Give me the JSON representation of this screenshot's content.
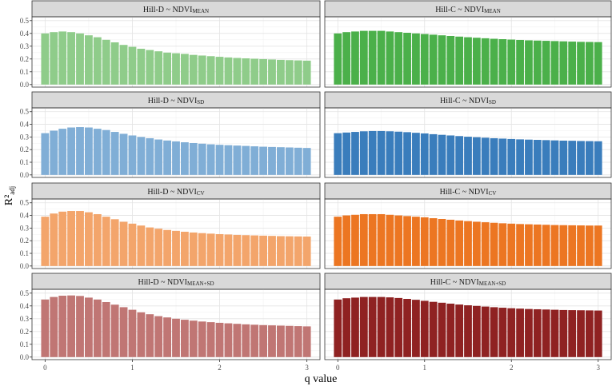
{
  "chart_data": {
    "type": "bar",
    "facet_layout": {
      "rows": 4,
      "cols": 2
    },
    "xlabel": "q value",
    "ylabel": {
      "main": "R²",
      "sub": "adj"
    },
    "x": [
      0.0,
      0.1,
      0.2,
      0.3,
      0.4,
      0.5,
      0.6,
      0.7,
      0.8,
      0.9,
      1.0,
      1.1,
      1.2,
      1.3,
      1.4,
      1.5,
      1.6,
      1.7,
      1.8,
      1.9,
      2.0,
      2.1,
      2.2,
      2.3,
      2.4,
      2.5,
      2.6,
      2.7,
      2.8,
      2.9,
      3.0
    ],
    "xlim": [
      -0.15,
      3.15
    ],
    "ylim": [
      -0.02,
      0.53
    ],
    "x_ticks": [
      0,
      1,
      2,
      3
    ],
    "x_tick_labels": [
      "0",
      "1",
      "2",
      "3"
    ],
    "y_ticks": [
      0.0,
      0.1,
      0.2,
      0.3,
      0.4,
      0.5
    ],
    "y_tick_labels": [
      "0.0",
      "0.1",
      "0.2",
      "0.3",
      "0.4",
      "0.5"
    ],
    "grid": true,
    "panels": [
      {
        "row": 0,
        "col": 0,
        "strip_prefix": "Hill-D ~ NDVI",
        "strip_sub": "MEAN",
        "color": "#8fcc8a",
        "values": [
          0.4,
          0.41,
          0.415,
          0.41,
          0.4,
          0.385,
          0.37,
          0.35,
          0.33,
          0.31,
          0.295,
          0.28,
          0.27,
          0.26,
          0.25,
          0.245,
          0.24,
          0.232,
          0.227,
          0.222,
          0.217,
          0.212,
          0.208,
          0.205,
          0.202,
          0.199,
          0.196,
          0.193,
          0.191,
          0.189,
          0.187
        ]
      },
      {
        "row": 0,
        "col": 1,
        "strip_prefix": "Hill-C ~ NDVI",
        "strip_sub": "MEAN",
        "color": "#4bb04a",
        "values": [
          0.4,
          0.41,
          0.415,
          0.42,
          0.42,
          0.42,
          0.415,
          0.41,
          0.405,
          0.4,
          0.395,
          0.39,
          0.385,
          0.38,
          0.375,
          0.37,
          0.366,
          0.362,
          0.358,
          0.355,
          0.352,
          0.349,
          0.346,
          0.344,
          0.342,
          0.34,
          0.338,
          0.336,
          0.334,
          0.333,
          0.332
        ]
      },
      {
        "row": 1,
        "col": 0,
        "strip_prefix": "Hill-D ~ NDVI",
        "strip_sub": "SD",
        "color": "#80aed6",
        "values": [
          0.33,
          0.35,
          0.365,
          0.375,
          0.378,
          0.375,
          0.365,
          0.355,
          0.34,
          0.325,
          0.312,
          0.3,
          0.29,
          0.28,
          0.272,
          0.265,
          0.258,
          0.252,
          0.247,
          0.242,
          0.238,
          0.235,
          0.232,
          0.229,
          0.226,
          0.223,
          0.221,
          0.219,
          0.217,
          0.215,
          0.213
        ]
      },
      {
        "row": 1,
        "col": 1,
        "strip_prefix": "Hill-C ~ NDVI",
        "strip_sub": "SD",
        "color": "#3a7dbc",
        "values": [
          0.33,
          0.335,
          0.34,
          0.345,
          0.347,
          0.347,
          0.345,
          0.342,
          0.338,
          0.333,
          0.328,
          0.322,
          0.317,
          0.312,
          0.307,
          0.302,
          0.298,
          0.294,
          0.29,
          0.287,
          0.284,
          0.281,
          0.279,
          0.277,
          0.275,
          0.273,
          0.271,
          0.27,
          0.268,
          0.267,
          0.266
        ]
      },
      {
        "row": 2,
        "col": 0,
        "strip_prefix": "Hill-D ~ NDVI",
        "strip_sub": "CV",
        "color": "#f3a56b",
        "values": [
          0.39,
          0.415,
          0.43,
          0.435,
          0.435,
          0.425,
          0.41,
          0.39,
          0.37,
          0.35,
          0.335,
          0.32,
          0.305,
          0.295,
          0.285,
          0.278,
          0.271,
          0.265,
          0.26,
          0.256,
          0.252,
          0.249,
          0.246,
          0.244,
          0.242,
          0.24,
          0.238,
          0.236,
          0.235,
          0.234,
          0.233
        ]
      },
      {
        "row": 2,
        "col": 1,
        "strip_prefix": "Hill-C ~ NDVI",
        "strip_sub": "CV",
        "color": "#ec7622",
        "values": [
          0.39,
          0.4,
          0.405,
          0.41,
          0.41,
          0.41,
          0.405,
          0.4,
          0.395,
          0.39,
          0.385,
          0.378,
          0.372,
          0.366,
          0.36,
          0.355,
          0.35,
          0.346,
          0.342,
          0.338,
          0.335,
          0.332,
          0.33,
          0.328,
          0.326,
          0.324,
          0.323,
          0.322,
          0.321,
          0.32,
          0.32
        ]
      },
      {
        "row": 3,
        "col": 0,
        "strip_prefix": "Hill-D ~ NDVI",
        "strip_sub": "MEAN+SD",
        "color": "#c07674",
        "values": [
          0.45,
          0.47,
          0.48,
          0.482,
          0.478,
          0.465,
          0.45,
          0.43,
          0.41,
          0.39,
          0.37,
          0.35,
          0.335,
          0.32,
          0.31,
          0.3,
          0.292,
          0.285,
          0.278,
          0.273,
          0.268,
          0.264,
          0.26,
          0.256,
          0.253,
          0.25,
          0.248,
          0.246,
          0.244,
          0.242,
          0.24
        ]
      },
      {
        "row": 3,
        "col": 1,
        "strip_prefix": "Hill-C ~ NDVI",
        "strip_sub": "MEAN+SD",
        "color": "#8f2222",
        "values": [
          0.45,
          0.46,
          0.465,
          0.47,
          0.47,
          0.47,
          0.467,
          0.462,
          0.455,
          0.448,
          0.44,
          0.432,
          0.425,
          0.418,
          0.411,
          0.405,
          0.4,
          0.395,
          0.39,
          0.386,
          0.382,
          0.379,
          0.376,
          0.374,
          0.372,
          0.37,
          0.368,
          0.367,
          0.366,
          0.365,
          0.364
        ]
      }
    ]
  }
}
